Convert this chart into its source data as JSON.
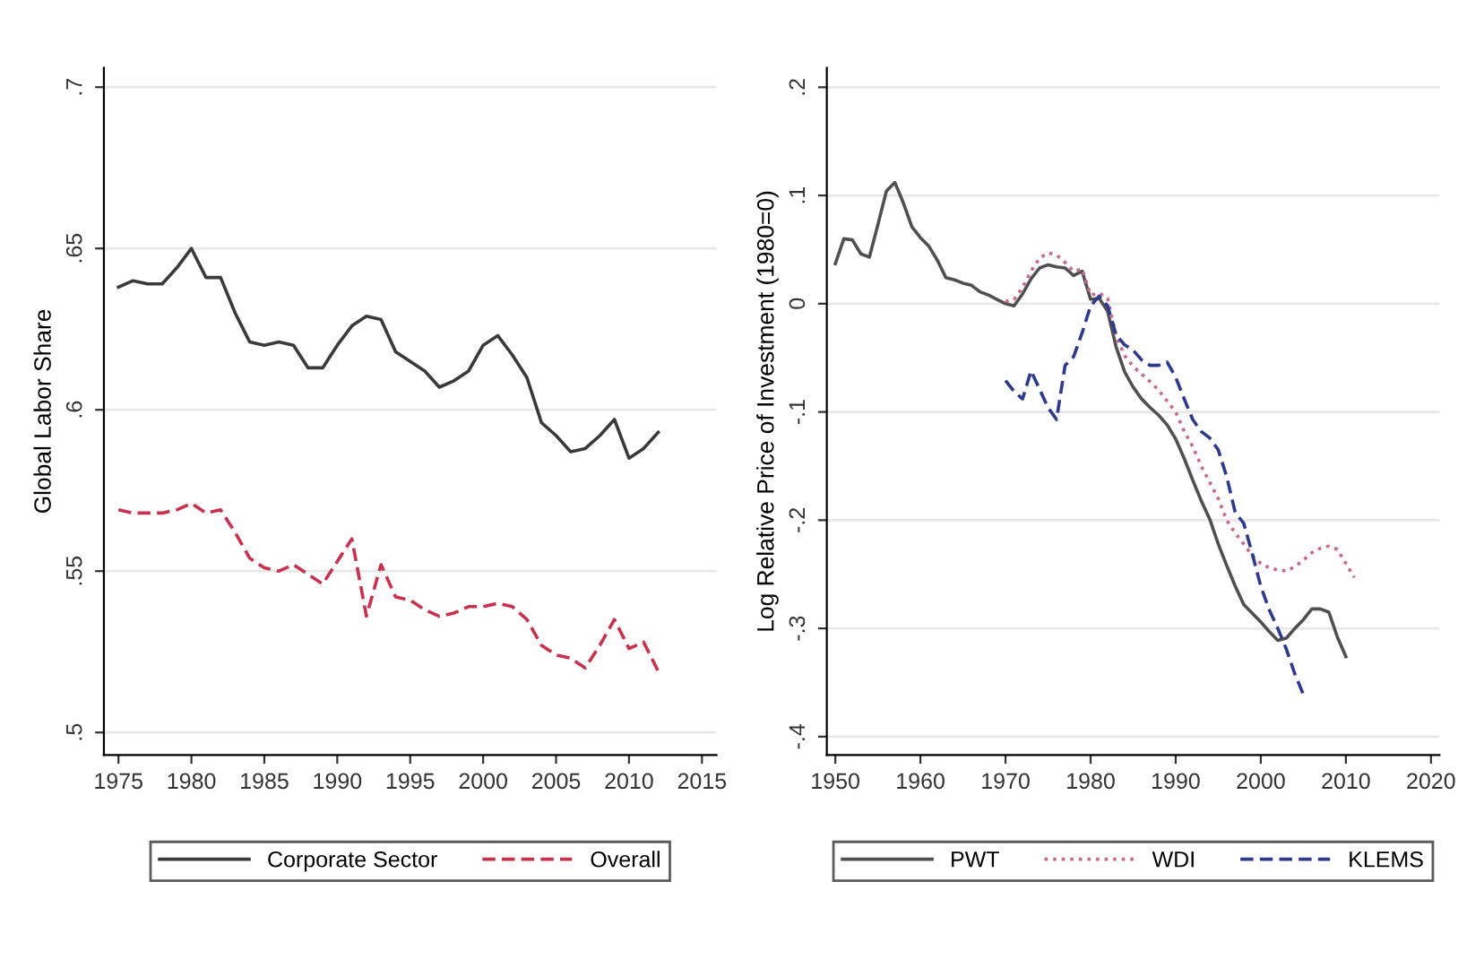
{
  "chart_data": [
    {
      "type": "line",
      "ylabel": "Global Labor Share",
      "legend": "bottom",
      "grid": "y",
      "x": [
        1975,
        1976,
        1977,
        1978,
        1979,
        1980,
        1981,
        1982,
        1983,
        1984,
        1985,
        1986,
        1987,
        1988,
        1989,
        1990,
        1991,
        1992,
        1993,
        1994,
        1995,
        1996,
        1997,
        1998,
        1999,
        2000,
        2001,
        2002,
        2003,
        2004,
        2005,
        2006,
        2007,
        2008,
        2009,
        2010,
        2011,
        2012
      ],
      "xlim": [
        1974,
        2016
      ],
      "xticks": [
        1975,
        1980,
        1985,
        1990,
        1995,
        2000,
        2005,
        2010,
        2015
      ],
      "ylim": [
        0.493,
        0.706
      ],
      "yticks": [
        {
          "value": 0.5,
          "label": ".5"
        },
        {
          "value": 0.55,
          "label": ".55"
        },
        {
          "value": 0.6,
          "label": ".6"
        },
        {
          "value": 0.65,
          "label": ".65"
        },
        {
          "value": 0.7,
          "label": ".7"
        }
      ],
      "series": [
        {
          "name": "Corporate Sector",
          "color": "#3a3a3a",
          "line_style": "solid",
          "values": [
            0.638,
            0.64,
            0.639,
            0.639,
            0.644,
            0.65,
            0.641,
            0.641,
            0.63,
            0.621,
            0.62,
            0.621,
            0.62,
            0.613,
            0.613,
            0.62,
            0.626,
            0.629,
            0.628,
            0.618,
            0.615,
            0.612,
            0.607,
            0.609,
            0.612,
            0.62,
            0.623,
            0.617,
            0.61,
            0.596,
            0.592,
            0.587,
            0.588,
            0.592,
            0.597,
            0.585,
            0.588,
            0.593
          ]
        },
        {
          "name": "Overall",
          "color": "#c8324e",
          "line_style": "dashed",
          "values": [
            0.569,
            0.568,
            0.568,
            0.568,
            0.569,
            0.571,
            0.568,
            0.569,
            0.562,
            0.554,
            0.551,
            0.55,
            0.552,
            0.549,
            0.546,
            0.553,
            0.56,
            0.536,
            0.552,
            0.542,
            0.541,
            0.538,
            0.536,
            0.537,
            0.539,
            0.539,
            0.54,
            0.539,
            0.535,
            0.527,
            0.524,
            0.523,
            0.52,
            0.527,
            0.535,
            0.526,
            0.528,
            0.519
          ]
        }
      ]
    },
    {
      "type": "line",
      "ylabel": "Log Relative Price of Investment (1980=0)",
      "legend": "bottom",
      "grid": "y",
      "xlim": [
        1949,
        2021
      ],
      "xticks": [
        1950,
        1960,
        1970,
        1980,
        1990,
        2000,
        2010,
        2020
      ],
      "ylim": [
        -0.417,
        0.218
      ],
      "yticks": [
        {
          "value": -0.4,
          "label": "-.4"
        },
        {
          "value": -0.3,
          "label": "-.3"
        },
        {
          "value": -0.2,
          "label": "-.2"
        },
        {
          "value": -0.1,
          "label": "-.1"
        },
        {
          "value": 0,
          "label": "0"
        },
        {
          "value": 0.1,
          "label": ".1"
        },
        {
          "value": 0.2,
          "label": ".2"
        }
      ],
      "series": [
        {
          "name": "PWT",
          "color": "#505050",
          "line_style": "solid",
          "x": [
            1950,
            1951,
            1952,
            1953,
            1954,
            1955,
            1956,
            1957,
            1958,
            1959,
            1960,
            1961,
            1962,
            1963,
            1964,
            1965,
            1966,
            1967,
            1968,
            1969,
            1970,
            1971,
            1972,
            1973,
            1974,
            1975,
            1976,
            1977,
            1978,
            1979,
            1980,
            1981,
            1982,
            1983,
            1984,
            1985,
            1986,
            1987,
            1988,
            1989,
            1990,
            1991,
            1992,
            1993,
            1994,
            1995,
            1996,
            1997,
            1998,
            1999,
            2000,
            2001,
            2002,
            2003,
            2004,
            2005,
            2006,
            2007,
            2008,
            2009,
            2010
          ],
          "values": [
            0.037,
            0.06,
            0.059,
            0.046,
            0.043,
            0.073,
            0.104,
            0.112,
            0.093,
            0.071,
            0.061,
            0.053,
            0.04,
            0.024,
            0.022,
            0.019,
            0.017,
            0.011,
            0.008,
            0.004,
            0,
            -0.002,
            0.009,
            0.023,
            0.033,
            0.036,
            0.034,
            0.033,
            0.026,
            0.03,
            0.004,
            0.005,
            -0.007,
            -0.04,
            -0.063,
            -0.077,
            -0.088,
            -0.096,
            -0.103,
            -0.112,
            -0.125,
            -0.143,
            -0.163,
            -0.182,
            -0.199,
            -0.222,
            -0.242,
            -0.261,
            -0.278,
            -0.286,
            -0.294,
            -0.303,
            -0.311,
            -0.309,
            -0.3,
            -0.292,
            -0.282,
            -0.282,
            -0.285,
            -0.308,
            -0.326
          ]
        },
        {
          "name": "WDI",
          "color": "#c86a8a",
          "line_style": "dotted",
          "x": [
            1970,
            1971,
            1972,
            1973,
            1974,
            1975,
            1976,
            1977,
            1978,
            1979,
            1980,
            1981,
            1982,
            1983,
            1984,
            1985,
            1986,
            1987,
            1988,
            1989,
            1990,
            1991,
            1992,
            1993,
            1994,
            1995,
            1996,
            1997,
            1998,
            1999,
            2000,
            2001,
            2002,
            2003,
            2004,
            2005,
            2006,
            2007,
            2008,
            2009,
            2010,
            2011
          ],
          "values": [
            0.002,
            0.004,
            0.015,
            0.03,
            0.042,
            0.047,
            0.045,
            0.038,
            0.03,
            0.032,
            0.008,
            0.01,
            0.005,
            -0.03,
            -0.048,
            -0.058,
            -0.065,
            -0.072,
            -0.08,
            -0.09,
            -0.1,
            -0.118,
            -0.132,
            -0.15,
            -0.165,
            -0.18,
            -0.2,
            -0.212,
            -0.222,
            -0.233,
            -0.24,
            -0.244,
            -0.246,
            -0.247,
            -0.243,
            -0.237,
            -0.23,
            -0.226,
            -0.224,
            -0.227,
            -0.24,
            -0.253
          ]
        },
        {
          "name": "KLEMS",
          "color": "#2e3a8c",
          "line_style": "dashed",
          "x": [
            1970,
            1971,
            1972,
            1973,
            1974,
            1975,
            1976,
            1977,
            1978,
            1979,
            1980,
            1981,
            1982,
            1983,
            1984,
            1985,
            1986,
            1987,
            1988,
            1989,
            1990,
            1991,
            1992,
            1993,
            1994,
            1995,
            1996,
            1997,
            1998,
            1999,
            2000,
            2001,
            2002,
            2003,
            2004,
            2005
          ],
          "values": [
            -0.071,
            -0.081,
            -0.088,
            -0.062,
            -0.079,
            -0.096,
            -0.107,
            -0.057,
            -0.049,
            -0.027,
            -0.002,
            0.007,
            -0.002,
            -0.029,
            -0.038,
            -0.043,
            -0.052,
            -0.057,
            -0.057,
            -0.054,
            -0.068,
            -0.088,
            -0.107,
            -0.118,
            -0.124,
            -0.135,
            -0.16,
            -0.193,
            -0.203,
            -0.231,
            -0.261,
            -0.283,
            -0.3,
            -0.319,
            -0.342,
            -0.361
          ]
        }
      ]
    }
  ]
}
